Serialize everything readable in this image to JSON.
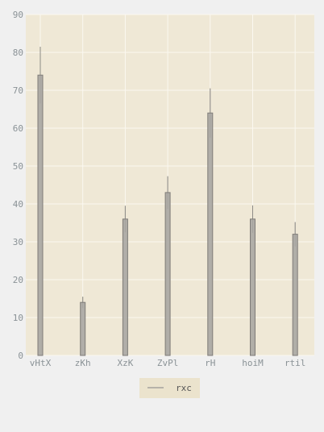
{
  "chart_data": {
    "type": "bar",
    "title": "",
    "xlabel": "",
    "ylabel": "",
    "categories": [
      "vHtX",
      "zKh",
      "XzK",
      "ZvPl",
      "rH",
      "hoiM",
      "rtil"
    ],
    "series": [
      {
        "name": "rxc",
        "values": [
          74,
          14,
          36,
          43,
          64,
          36,
          32
        ],
        "error": [
          7.5,
          1.5,
          3.5,
          4.3,
          6.5,
          3.6,
          3.2
        ]
      }
    ],
    "ylim": [
      0,
      90
    ],
    "yticks": [
      0,
      10,
      20,
      30,
      40,
      50,
      60,
      70,
      80,
      90
    ],
    "grid": true,
    "legend_position": "bottom-center",
    "colors": {
      "figure_background": "#f0f0f0",
      "plot_background": "#efe8d6",
      "grid": "#fbf8f0",
      "bar_fill": "#a9a6a2",
      "bar_edge": "#7f7c78",
      "error_bar": "#a5a29d",
      "tick_text": "#8a9296",
      "legend_background": "#ebe3cd"
    }
  }
}
